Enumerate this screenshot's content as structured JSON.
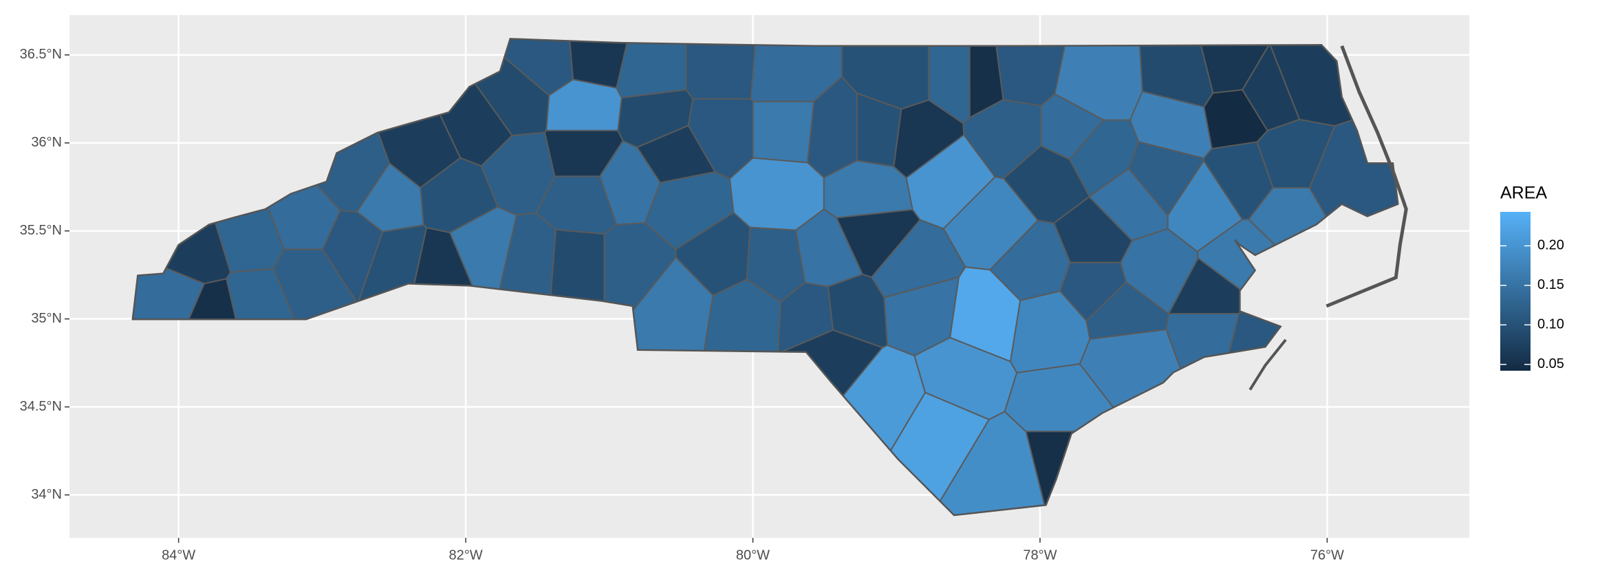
{
  "chart_data": {
    "type": "choropleth",
    "xlim": [
      -84.76,
      -75.01
    ],
    "ylim": [
      33.756,
      36.726
    ],
    "xticks": [
      {
        "value": -84,
        "label": "84°W"
      },
      {
        "value": -82,
        "label": "82°W"
      },
      {
        "value": -80,
        "label": "80°W"
      },
      {
        "value": -78,
        "label": "78°W"
      },
      {
        "value": -76,
        "label": "76°W"
      }
    ],
    "yticks": [
      {
        "value": 34,
        "label": "34°N"
      },
      {
        "value": 34.5,
        "label": "34.5°N"
      },
      {
        "value": 35,
        "label": "35°N"
      },
      {
        "value": 35.5,
        "label": "35.5°N"
      },
      {
        "value": 36,
        "label": "36°N"
      },
      {
        "value": 36.5,
        "label": "36.5°N"
      }
    ],
    "grid": true,
    "legend": {
      "title": "AREA",
      "position": "right",
      "ticks": [
        0.05,
        {
          "value": 0.1,
          "label": "0.10"
        },
        0.15,
        {
          "value": 0.2,
          "label": "0.20"
        }
      ]
    },
    "color_scale": {
      "low": "#132B43",
      "high": "#56B1F7",
      "limits": [
        0.042,
        0.243
      ]
    },
    "x": [
      -83.96,
      -83.79,
      -83.86,
      -83.5,
      -83.47,
      -83.11,
      -83.11,
      -82.79,
      -82.76,
      -82.54,
      -82.47,
      -82.19,
      -82.29,
      -82.08,
      -81.9,
      -81.66,
      -81.41,
      -81.12,
      -81.19,
      -81.62,
      -81.87,
      -81.55,
      -81.19,
      -81.19,
      -81.23,
      -80.87,
      -80.7,
      -80.66,
      -80.55,
      -80.48,
      -80.84,
      -80.52,
      -80.23,
      -80.23,
      -80.23,
      -80.06,
      -79.77,
      -79.77,
      -79.81,
      -79.84,
      -79.56,
      -79.49,
      -79.42,
      -79.13,
      -79.2,
      -78.99,
      -78.85,
      -79.17,
      -79.45,
      -79.35,
      -79.06,
      -78.88,
      -78.56,
      -78.64,
      -78.81,
      -78.71,
      -78.56,
      -78.32,
      -78.42,
      -78.39,
      -78.24,
      -78.21,
      -78.14,
      -78.03,
      -77.93,
      -77.93,
      -77.85,
      -77.85,
      -77.61,
      -77.78,
      -77.61,
      -77.61,
      -77.61,
      -77.39,
      -77.36,
      -77.43,
      -77.21,
      -77.04,
      -77.14,
      -76.97,
      -76.86,
      -76.68,
      -76.65,
      -76.43,
      -76.58,
      -76.58,
      -76.79,
      -76.79,
      -76.5,
      -76.26,
      -76.26,
      -76.15,
      -75.9
    ],
    "y": [
      35.13,
      35.07,
      35.33,
      35.42,
      35.13,
      35.54,
      35.25,
      35.42,
      35.8,
      35.68,
      35.33,
      35.28,
      35.94,
      35.71,
      36.09,
      36.23,
      36.47,
      36.49,
      36.2,
      35.86,
      35.39,
      35.33,
      35.94,
      35.68,
      35.31,
      35.77,
      36.41,
      36.15,
      35.94,
      35.65,
      35.31,
      35.1,
      36.41,
      36.09,
      35.33,
      35.04,
      36.38,
      36.09,
      35.71,
      35.31,
      35.02,
      35.36,
      36.06,
      36.06,
      35.71,
      36.38,
      36.03,
      35.48,
      34.81,
      35.04,
      34.55,
      35.28,
      36.38,
      35.8,
      35.07,
      34.38,
      34.67,
      35.54,
      36.38,
      35.02,
      34.15,
      36.06,
      36.41,
      35.31,
      35.8,
      34.96,
      34.49,
      34.23,
      36.32,
      36.06,
      35.45,
      35.94,
      35.19,
      34.78,
      35.65,
      35.04,
      35.28,
      36.12,
      35.8,
      36.35,
      35.65,
      36.41,
      36.18,
      36.29,
      35.8,
      35.33,
      35.1,
      34.96,
      34.9,
      35.6,
      35.89,
      36.38,
      35.77
    ],
    "values": [
      0.14,
      0.05,
      0.07,
      0.13,
      0.13,
      0.14,
      0.12,
      0.11,
      0.12,
      0.16,
      0.1,
      0.06,
      0.07,
      0.1,
      0.07,
      0.09,
      0.11,
      0.06,
      0.2,
      0.12,
      0.16,
      0.12,
      0.06,
      0.12,
      0.09,
      0.15,
      0.13,
      0.09,
      0.07,
      0.13,
      0.12,
      0.16,
      0.11,
      0.11,
      0.1,
      0.13,
      0.14,
      0.16,
      0.2,
      0.12,
      0.11,
      0.15,
      0.11,
      0.1,
      0.16,
      0.1,
      0.06,
      0.06,
      0.07,
      0.09,
      0.21,
      0.14,
      0.13,
      0.2,
      0.15,
      0.22,
      0.2,
      0.18,
      0.05,
      0.23,
      0.19,
      0.12,
      0.11,
      0.14,
      0.09,
      0.18,
      0.18,
      0.05,
      0.17,
      0.14,
      0.08,
      0.13,
      0.11,
      0.17,
      0.15,
      0.12,
      0.15,
      0.17,
      0.12,
      0.09,
      0.18,
      0.06,
      0.04,
      0.07,
      0.1,
      0.16,
      0.07,
      0.14,
      0.11,
      0.16,
      0.1,
      0.07,
      0.11
    ]
  }
}
